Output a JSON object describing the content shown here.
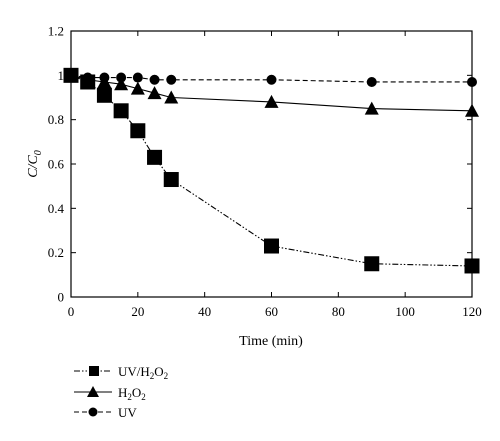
{
  "chart_data": {
    "type": "line",
    "xlabel": "Time (min)",
    "ylabel": {
      "main": "C/C",
      "sub": "0"
    },
    "xlim": [
      0,
      120
    ],
    "ylim": [
      0,
      1.2
    ],
    "x_ticks": [
      "0",
      "20",
      "40",
      "60",
      "80",
      "100",
      "120"
    ],
    "y_ticks": [
      "0",
      "0.2",
      "0.4",
      "0.6",
      "0.8",
      "1",
      "1.2"
    ],
    "grid": false,
    "legend_position": "bottom-left",
    "series": [
      {
        "name": "UV/H2O2",
        "legend": {
          "t1": "UV/H",
          "s1": "2",
          "t2": "O",
          "s2": "2"
        },
        "marker": "square",
        "line_style": "dash-dot-dot",
        "x": [
          0,
          5,
          10,
          15,
          20,
          25,
          30,
          60,
          90,
          120
        ],
        "y": [
          1.0,
          0.97,
          0.91,
          0.84,
          0.75,
          0.63,
          0.53,
          0.23,
          0.15,
          0.14
        ]
      },
      {
        "name": "H2O2",
        "legend": {
          "t1": "H",
          "s1": "2",
          "t2": "O",
          "s2": "2"
        },
        "marker": "triangle",
        "line_style": "solid",
        "x": [
          0,
          5,
          10,
          15,
          20,
          25,
          30,
          60,
          90,
          120
        ],
        "y": [
          1.0,
          0.98,
          0.97,
          0.96,
          0.94,
          0.92,
          0.9,
          0.88,
          0.85,
          0.84
        ]
      },
      {
        "name": "UV",
        "legend": {
          "t1": "UV"
        },
        "marker": "circle",
        "line_style": "dashed",
        "x": [
          0,
          5,
          10,
          15,
          20,
          25,
          30,
          60,
          90,
          120
        ],
        "y": [
          1.0,
          0.99,
          0.99,
          0.99,
          0.99,
          0.98,
          0.98,
          0.98,
          0.97,
          0.97
        ]
      }
    ]
  }
}
